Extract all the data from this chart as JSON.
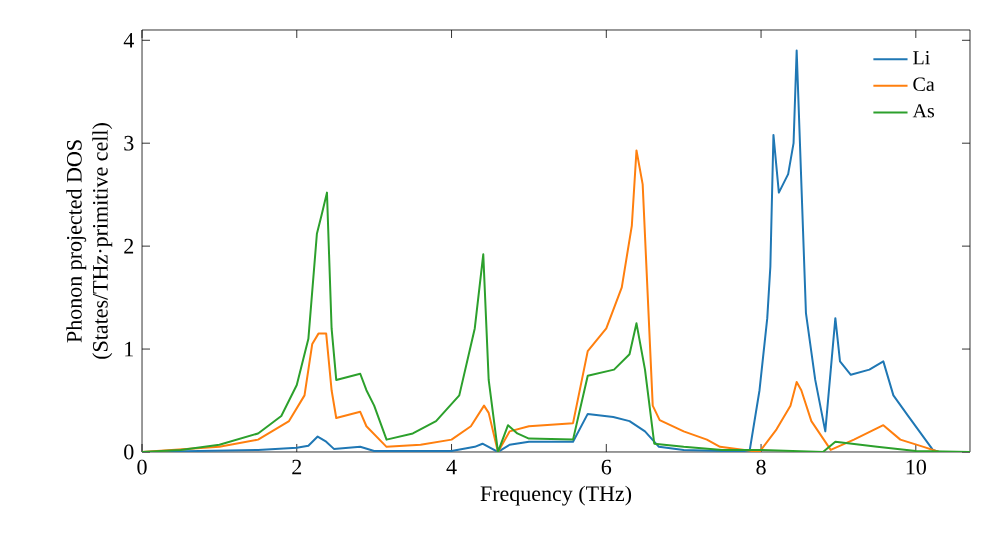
{
  "chart_data": {
    "type": "line",
    "xlabel": "Frequency (THz)",
    "ylabel": "Phonon projected DOS\n(States/THz·primitive cell)",
    "xlim": [
      0,
      10.7
    ],
    "ylim": [
      0,
      4.1
    ],
    "xticks": [
      0,
      2,
      4,
      6,
      8,
      10
    ],
    "yticks": [
      0,
      1,
      2,
      3,
      4
    ],
    "legend": "top right",
    "series": [
      {
        "name": "Li",
        "color": "#1f77b4",
        "x": [
          0,
          1.5,
          2.0,
          2.15,
          2.27,
          2.38,
          2.48,
          2.82,
          3.0,
          4.0,
          4.3,
          4.4,
          4.6,
          4.75,
          5.0,
          5.57,
          5.76,
          6.09,
          6.3,
          6.5,
          6.68,
          7.0,
          7.5,
          7.85,
          7.98,
          8.08,
          8.12,
          8.16,
          8.23,
          8.35,
          8.42,
          8.46,
          8.58,
          8.7,
          8.83,
          8.96,
          9.02,
          9.16,
          9.4,
          9.58,
          9.71,
          9.9,
          10.22,
          10.3,
          10.7
        ],
        "values": [
          0,
          0.02,
          0.04,
          0.06,
          0.15,
          0.1,
          0.03,
          0.05,
          0.01,
          0.01,
          0.05,
          0.08,
          0.0,
          0.07,
          0.1,
          0.1,
          0.37,
          0.34,
          0.3,
          0.2,
          0.05,
          0.02,
          0.01,
          0.0,
          0.6,
          1.3,
          1.8,
          3.08,
          2.52,
          2.7,
          3.0,
          3.9,
          1.35,
          0.7,
          0.2,
          1.3,
          0.88,
          0.75,
          0.8,
          0.88,
          0.55,
          0.35,
          0.02,
          0.0,
          0.0
        ]
      },
      {
        "name": "Ca",
        "color": "#ff7f0e",
        "x": [
          0,
          1.0,
          1.5,
          1.9,
          2.1,
          2.2,
          2.28,
          2.38,
          2.45,
          2.51,
          2.82,
          2.9,
          3.16,
          3.6,
          4.0,
          4.25,
          4.42,
          4.48,
          4.6,
          4.75,
          5.0,
          5.57,
          5.76,
          6.0,
          6.2,
          6.33,
          6.39,
          6.47,
          6.6,
          6.69,
          7.0,
          7.3,
          7.47,
          7.98,
          8.2,
          8.38,
          8.46,
          8.52,
          8.65,
          8.9,
          9.2,
          9.58,
          9.8,
          10.1,
          10.3,
          10.7
        ],
        "values": [
          0,
          0.05,
          0.12,
          0.3,
          0.55,
          1.05,
          1.15,
          1.15,
          0.6,
          0.33,
          0.39,
          0.25,
          0.05,
          0.07,
          0.12,
          0.25,
          0.45,
          0.38,
          0.0,
          0.2,
          0.25,
          0.28,
          0.98,
          1.2,
          1.6,
          2.2,
          2.93,
          2.6,
          0.45,
          0.31,
          0.2,
          0.12,
          0.05,
          0.0,
          0.22,
          0.45,
          0.68,
          0.6,
          0.3,
          0.02,
          0.12,
          0.26,
          0.12,
          0.05,
          0.0,
          0.0
        ]
      },
      {
        "name": "As",
        "color": "#2ca02c",
        "x": [
          0,
          0.5,
          1.0,
          1.5,
          1.8,
          2.0,
          2.15,
          2.26,
          2.32,
          2.39,
          2.45,
          2.51,
          2.82,
          2.9,
          3.0,
          3.16,
          3.5,
          3.8,
          4.1,
          4.3,
          4.41,
          4.48,
          4.6,
          4.73,
          4.85,
          5.0,
          5.57,
          5.76,
          6.1,
          6.3,
          6.39,
          6.5,
          6.62,
          7.0,
          7.5,
          8.0,
          8.8,
          8.96,
          9.5,
          10.0,
          10.7
        ],
        "values": [
          0,
          0.02,
          0.07,
          0.18,
          0.35,
          0.65,
          1.1,
          2.12,
          2.3,
          2.52,
          1.2,
          0.7,
          0.76,
          0.6,
          0.45,
          0.12,
          0.18,
          0.3,
          0.55,
          1.2,
          1.92,
          0.7,
          0.0,
          0.26,
          0.18,
          0.13,
          0.12,
          0.74,
          0.8,
          0.95,
          1.25,
          0.8,
          0.08,
          0.05,
          0.02,
          0.02,
          0.0,
          0.1,
          0.05,
          0.01,
          0.0
        ]
      }
    ]
  }
}
